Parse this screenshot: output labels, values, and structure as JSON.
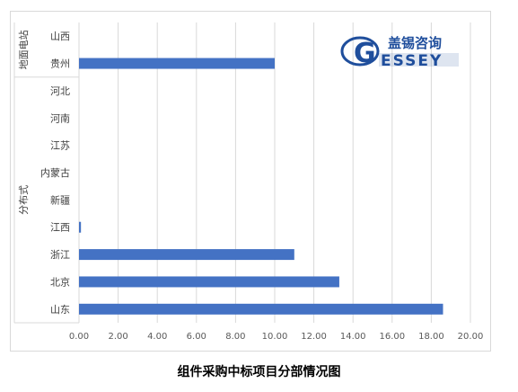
{
  "caption": "组件采购中标项目分部情况图",
  "watermark": {
    "brand_cn": "盖锡咨询",
    "brand_en": "ESSEY",
    "logo_letter": "G"
  },
  "colors": {
    "bar": "#4472c4",
    "grid": "#d9d9d9",
    "axis_text": "#595959",
    "brand": "#1f4e9c"
  },
  "chart_data": {
    "type": "bar",
    "orientation": "horizontal",
    "title": "",
    "xlabel": "",
    "ylabel": "",
    "xlim": [
      0,
      20
    ],
    "grid": true,
    "legend": "none",
    "x_ticks": [
      "0.00",
      "2.00",
      "4.00",
      "6.00",
      "8.00",
      "10.00",
      "12.00",
      "14.00",
      "16.00",
      "18.00",
      "20.00"
    ],
    "groups": [
      {
        "name": "地面电站",
        "categories": [
          "山西",
          "贵州"
        ]
      },
      {
        "name": "分布式",
        "categories": [
          "河北",
          "河南",
          "江苏",
          "内蒙古",
          "新疆",
          "江西",
          "浙江",
          "北京",
          "山东"
        ]
      }
    ],
    "categories": [
      "山西",
      "贵州",
      "河北",
      "河南",
      "江苏",
      "内蒙古",
      "新疆",
      "江西",
      "浙江",
      "北京",
      "山东"
    ],
    "values": [
      0,
      10,
      0,
      0,
      0,
      0,
      0,
      0.1,
      11,
      13.3,
      18.6
    ]
  }
}
